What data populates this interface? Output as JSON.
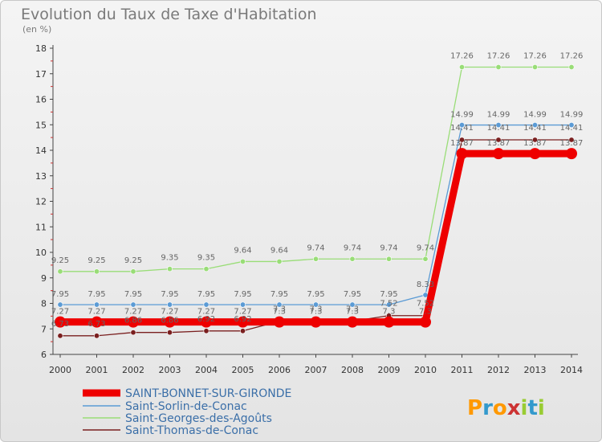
{
  "chart_data": {
    "type": "line",
    "title": "Evolution du Taux de Taxe d'Habitation",
    "subtitle": "(en %)",
    "xlabel": "",
    "ylabel": "",
    "ylim": [
      6,
      18
    ],
    "grid": false,
    "legend_position": "bottom-left",
    "x": [
      "2000",
      "2001",
      "2002",
      "2003",
      "2004",
      "2005",
      "2006",
      "2007",
      "2008",
      "2009",
      "2010",
      "2011",
      "2012",
      "2013",
      "2014"
    ],
    "y_ticks": [
      "6",
      "7",
      "8",
      "9",
      "10",
      "11",
      "12",
      "13",
      "14",
      "15",
      "16",
      "17",
      "18"
    ],
    "series": [
      {
        "name": "SAINT-BONNET-SUR-GIRONDE",
        "color": "#ee0000",
        "values": [
          7.27,
          7.27,
          7.27,
          7.27,
          7.27,
          7.27,
          7.27,
          7.27,
          7.27,
          7.27,
          7.27,
          13.87,
          13.87,
          13.87,
          13.87
        ],
        "labels": [
          "7.27",
          "7.27",
          "7.27",
          "7.27",
          "7.27",
          "7.27",
          "7.3",
          "7.3",
          "7.3",
          "7.3",
          "7.3",
          "13.87",
          "13.87",
          "13.87",
          "13.87"
        ]
      },
      {
        "name": "Saint-Sorlin-de-Conac",
        "color": "#5b9bd5",
        "values": [
          7.95,
          7.95,
          7.95,
          7.95,
          7.95,
          7.95,
          7.95,
          7.95,
          7.95,
          7.95,
          8.33,
          14.99,
          14.99,
          14.99,
          14.99
        ],
        "labels": [
          "7.95",
          "7.95",
          "7.95",
          "7.95",
          "7.95",
          "7.95",
          "7.95",
          "7.95",
          "7.95",
          "7.95",
          "8.33",
          "14.99",
          "14.99",
          "14.99",
          "14.99"
        ]
      },
      {
        "name": "Saint-Georges-des-Agoûts",
        "color": "#99dd77",
        "values": [
          9.25,
          9.25,
          9.25,
          9.35,
          9.35,
          9.64,
          9.64,
          9.74,
          9.74,
          9.74,
          9.74,
          17.26,
          17.26,
          17.26,
          17.26
        ],
        "labels": [
          "9.25",
          "9.25",
          "9.25",
          "9.35",
          "9.35",
          "9.64",
          "9.64",
          "9.74",
          "9.74",
          "9.74",
          "9.74",
          "17.26",
          "17.26",
          "17.26",
          "17.26"
        ]
      },
      {
        "name": "Saint-Thomas-de-Conac",
        "color": "#7a1f1f",
        "values": [
          6.73,
          6.73,
          6.86,
          6.86,
          6.92,
          6.92,
          7.3,
          7.3,
          7.3,
          7.52,
          7.52,
          14.41,
          14.41,
          14.41,
          14.41
        ],
        "labels": [
          "6.73",
          "6.73",
          "6.86",
          "6.86",
          "6.92",
          "6.92",
          "7.3",
          "7.3",
          "7.3",
          "7.52",
          "7.52",
          "14.41",
          "14.41",
          "14.41",
          "14.41"
        ]
      }
    ]
  },
  "brand": {
    "logo_text": "Proxiti",
    "colors": [
      "#ff9900",
      "#3399cc",
      "#99cc33",
      "#cc3333"
    ]
  }
}
